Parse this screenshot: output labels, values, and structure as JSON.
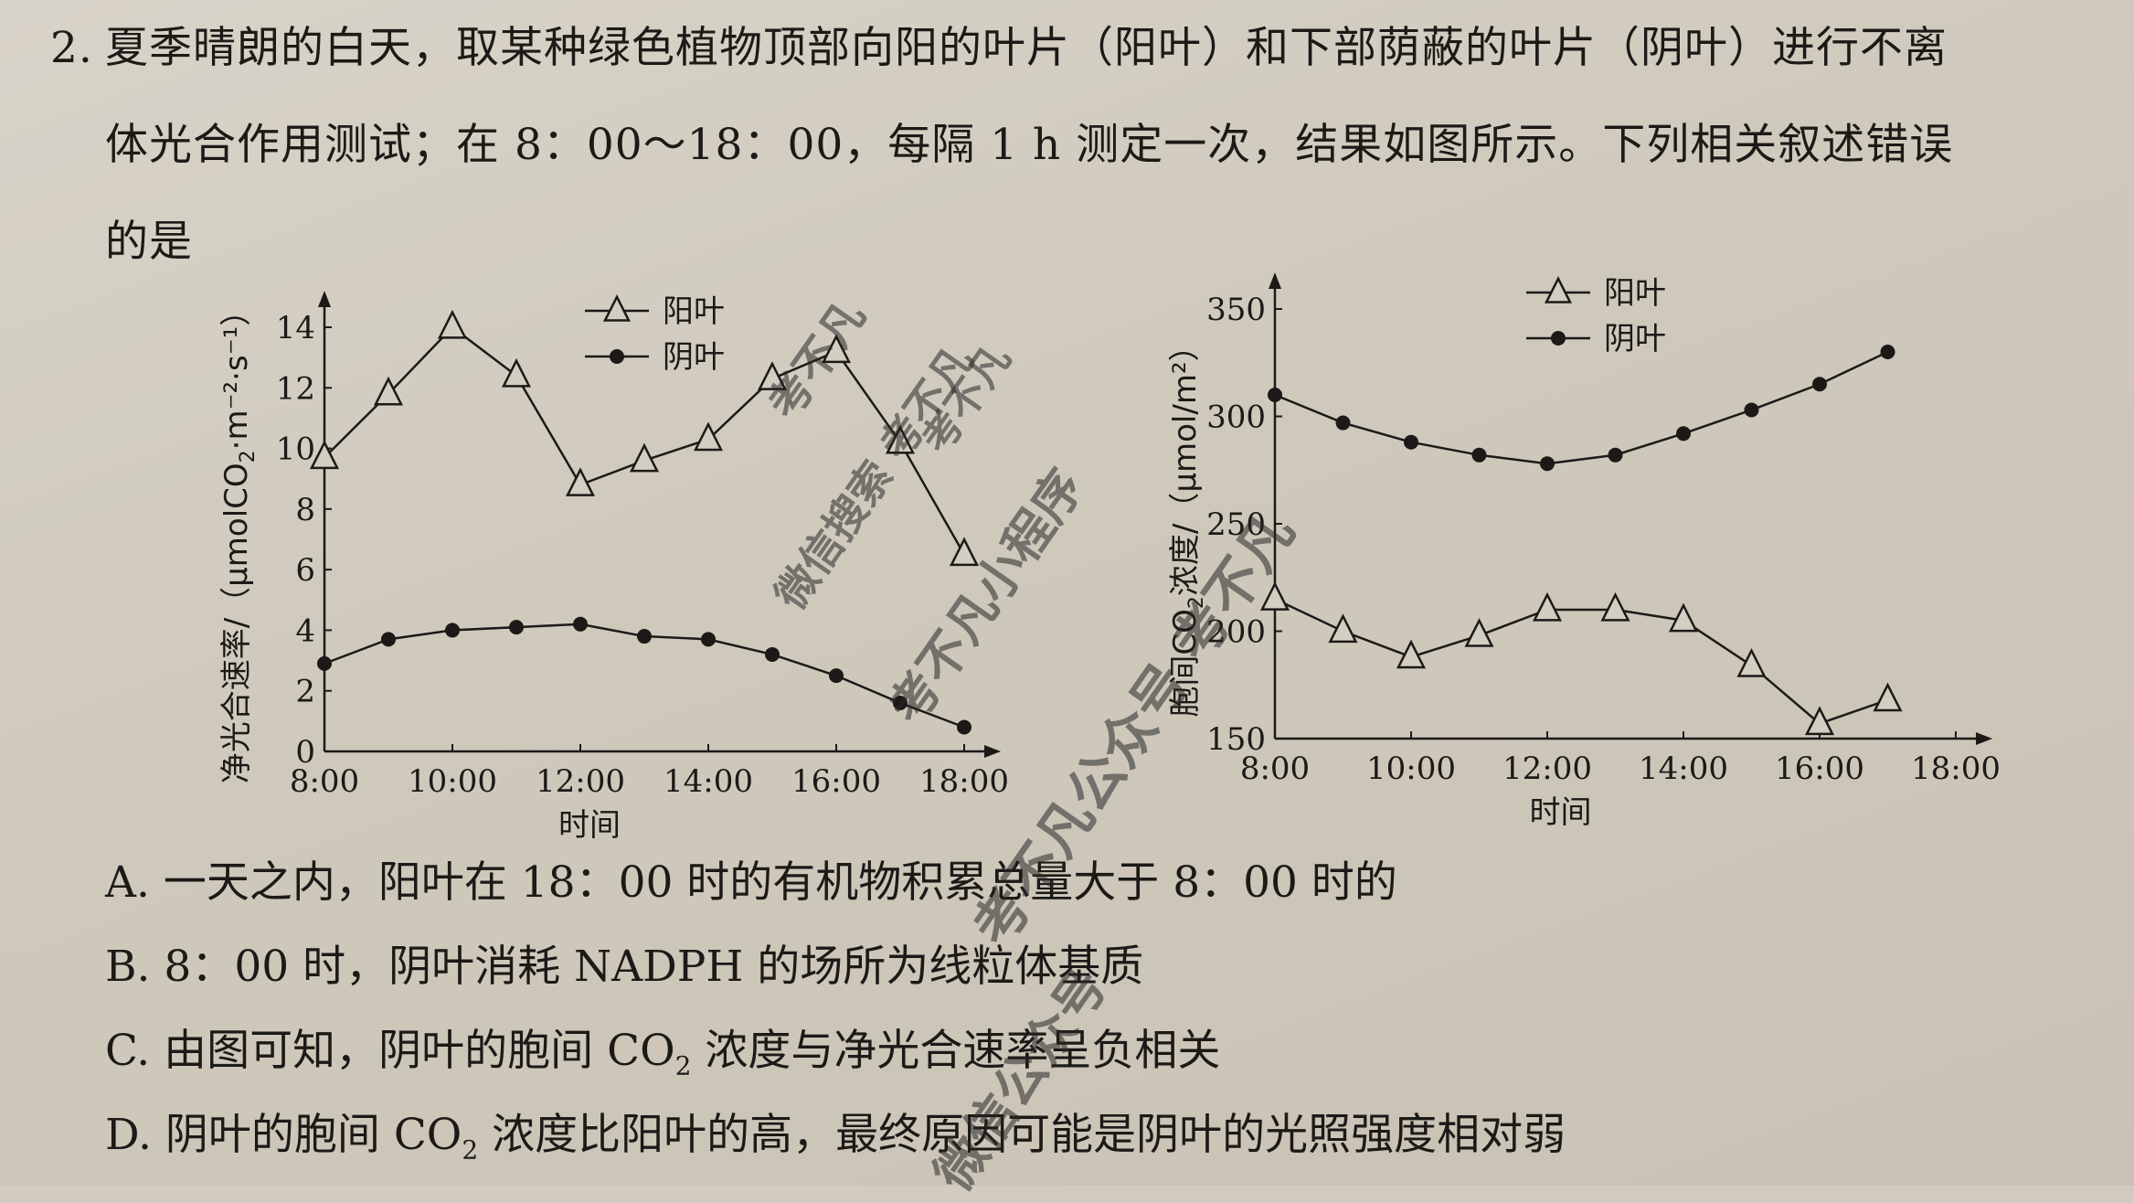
{
  "question": {
    "number": "2.",
    "line1": "夏季晴朗的白天，取某种绿色植物顶部向阳的叶片（阳叶）和下部荫蔽的叶片（阴叶）进行不离",
    "line2": "体光合作用测试；在 8：00～18：00，每隔 1 h 测定一次，结果如图所示。下列相关叙述错误",
    "line3": "的是"
  },
  "chart_data": [
    {
      "type": "line",
      "xlabel": "时间",
      "ylabel_prefix": "净光合速率/（μmolCO",
      "ylabel_sub": "2",
      "ylabel_suffix": "·m⁻²·s⁻¹）",
      "x_ticks": [
        "8:00",
        "10:00",
        "12:00",
        "14:00",
        "16:00",
        "18:00"
      ],
      "y_ticks": [
        "0",
        "2",
        "4",
        "6",
        "8",
        "10",
        "12",
        "14"
      ],
      "ylim": [
        0,
        14
      ],
      "xlim": [
        8,
        18
      ],
      "legend": [
        {
          "label": "阳叶",
          "marker": "triangle"
        },
        {
          "label": "阴叶",
          "marker": "dot"
        }
      ],
      "series": [
        {
          "name": "阳叶",
          "marker": "triangle",
          "x": [
            8,
            9,
            10,
            11,
            12,
            13,
            14,
            15,
            16,
            17,
            18
          ],
          "y": [
            9.7,
            11.8,
            14.0,
            12.4,
            8.8,
            9.6,
            10.3,
            12.3,
            13.2,
            10.2,
            6.5
          ]
        },
        {
          "name": "阴叶",
          "marker": "dot",
          "x": [
            8,
            9,
            10,
            11,
            12,
            13,
            14,
            15,
            16,
            17,
            18
          ],
          "y": [
            2.9,
            3.7,
            4.0,
            4.1,
            4.2,
            3.8,
            3.7,
            3.2,
            2.5,
            1.6,
            0.8
          ]
        }
      ]
    },
    {
      "type": "line",
      "xlabel": "时间",
      "ylabel_prefix": "胞间CO",
      "ylabel_sub": "2",
      "ylabel_suffix": "浓度/（μmol/m²）",
      "x_ticks": [
        "8:00",
        "10:00",
        "12:00",
        "14:00",
        "16:00",
        "18:00"
      ],
      "y_ticks": [
        "150",
        "200",
        "250",
        "300",
        "350"
      ],
      "ylim": [
        150,
        350
      ],
      "xlim": [
        8,
        18
      ],
      "legend": [
        {
          "label": "阳叶",
          "marker": "triangle"
        },
        {
          "label": "阴叶",
          "marker": "dot"
        }
      ],
      "series": [
        {
          "name": "阳叶",
          "marker": "triangle",
          "x": [
            8,
            9,
            10,
            11,
            12,
            13,
            14,
            15,
            16,
            17
          ],
          "y": [
            215,
            200,
            188,
            198,
            210,
            210,
            205,
            184,
            157,
            168
          ]
        },
        {
          "name": "阴叶",
          "marker": "dot",
          "x": [
            8,
            9,
            10,
            11,
            12,
            13,
            14,
            15,
            16,
            17
          ],
          "y": [
            310,
            297,
            288,
            282,
            278,
            282,
            292,
            303,
            315,
            330
          ]
        }
      ]
    }
  ],
  "options": {
    "A": "A. 一天之内，阳叶在 18：00 时的有机物积累总量大于 8：00 时的",
    "B": "B. 8：00 时，阴叶消耗 NADPH 的场所为线粒体基质",
    "C_pre": "C. 由图可知，阴叶的胞间 CO",
    "C_post": " 浓度与净光合速率呈负相关",
    "D_pre": "D. 阴叶的胞间 CO",
    "D_post": " 浓度比阳叶的高，最终原因可能是阴叶的光照强度相对弱",
    "sub2": "2"
  },
  "watermarks": {
    "w1": "考不凡",
    "w2": "考不凡",
    "w3": "微信搜索 考不凡",
    "w4": "考不凡小程序",
    "w5": "考不凡公众号 考不凡",
    "w6": "微信公众号"
  }
}
